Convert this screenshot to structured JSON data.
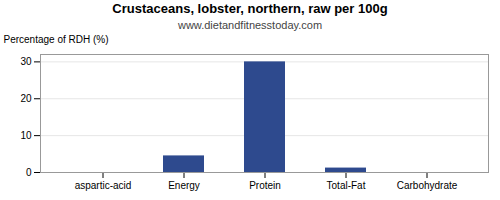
{
  "chart_data": {
    "type": "bar",
    "title": "Crustaceans, lobster, northern, raw per 100g",
    "subtitle": "www.dietandfitnesstoday.com",
    "categories": [
      "aspartic-acid",
      "Energy",
      "Protein",
      "Total-Fat",
      "Carbohydrate"
    ],
    "values": [
      0,
      4.5,
      30,
      1.2,
      0
    ],
    "color": "#2e4a8e",
    "ylabel": "Percentage of RDH (%)",
    "ylim": [
      0,
      32
    ],
    "yticks": [
      0,
      10,
      20,
      30
    ],
    "grid": true
  }
}
